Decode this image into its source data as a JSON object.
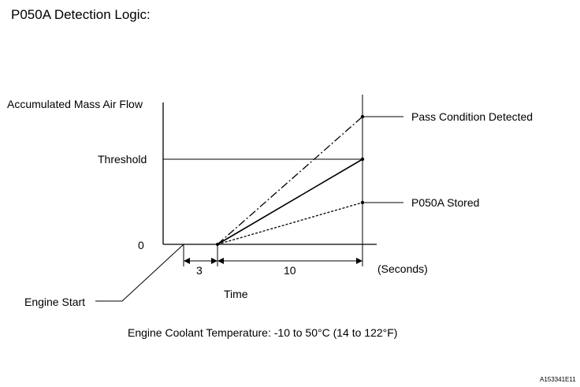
{
  "title": "P050A Detection Logic:",
  "y_axis_label": "Accumulated Mass Air Flow",
  "threshold_label": "Threshold",
  "zero_label": "0",
  "pass_label": "Pass Condition Detected",
  "stored_label": "P050A Stored",
  "interval_1": "3",
  "interval_2": "10",
  "unit_label": "(Seconds)",
  "x_axis_label": "Time",
  "engine_start_label": "Engine Start",
  "condition_note": "Engine Coolant Temperature: -10 to 50°C (14 to 122°F)",
  "figure_code": "A153341E11"
}
